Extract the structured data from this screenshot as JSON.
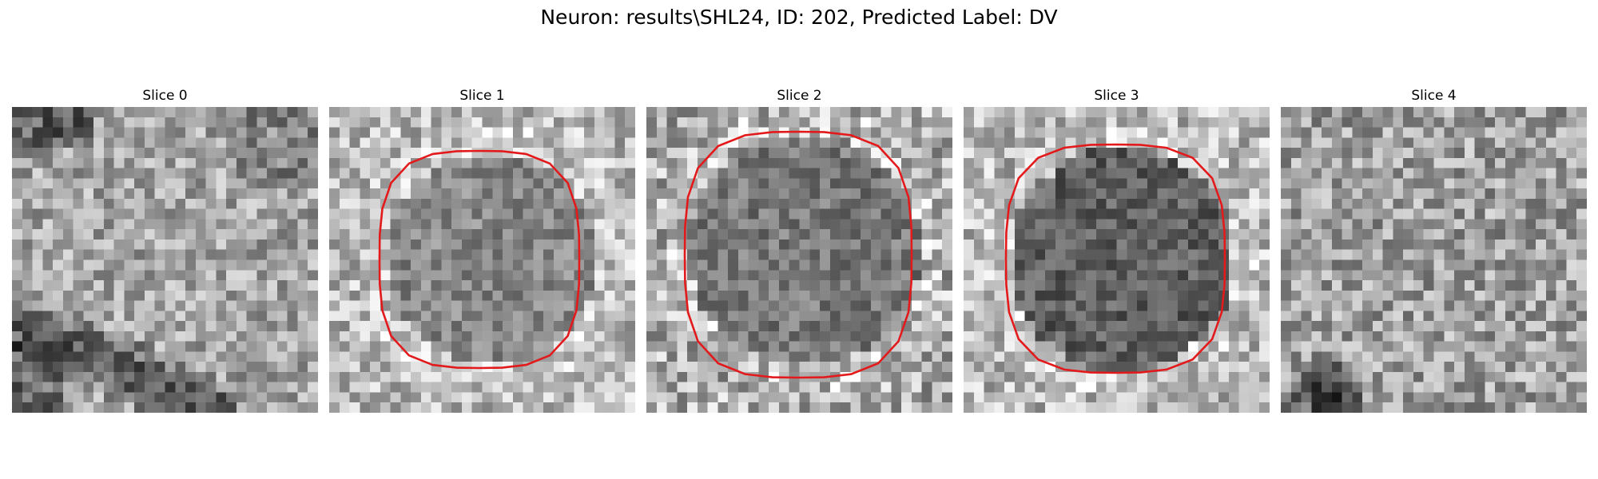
{
  "figure": {
    "title": "Neuron: results\\SHL24, ID: 202, Predicted Label: DV"
  },
  "slices": [
    {
      "title": "Slice 0",
      "has_contour": false
    },
    {
      "title": "Slice 1",
      "has_contour": true
    },
    {
      "title": "Slice 2",
      "has_contour": true
    },
    {
      "title": "Slice 3",
      "has_contour": true
    },
    {
      "title": "Slice 4",
      "has_contour": false
    }
  ],
  "colors": {
    "contour": "#e31a1c",
    "background": "#ffffff"
  }
}
